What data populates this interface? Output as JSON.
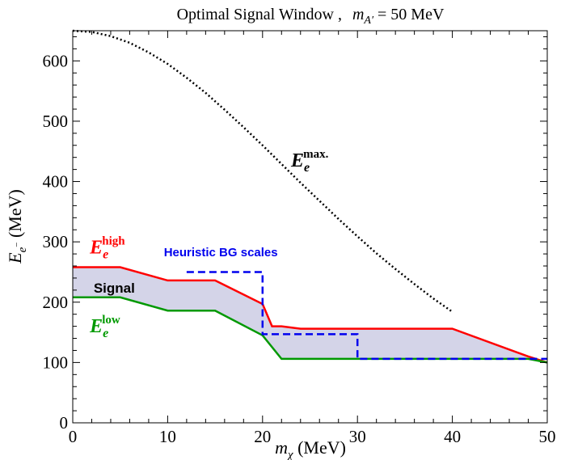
{
  "chart_data": {
    "type": "line",
    "title": "Optimal Signal Window ,",
    "title_math": {
      "symbol": "m",
      "subscript": "A′",
      "value_text": " = 50 MeV"
    },
    "xlabel": {
      "symbol": "m",
      "subscript": "χ",
      "unit": " (MeV)"
    },
    "ylabel": {
      "symbol": "E",
      "subscript": "e",
      "subsubscript": "−",
      "unit": " (MeV)"
    },
    "xlim": [
      0,
      50
    ],
    "ylim": [
      0,
      650
    ],
    "x_ticks": [
      0,
      10,
      20,
      30,
      40,
      50
    ],
    "y_ticks": [
      0,
      100,
      200,
      300,
      400,
      500,
      600
    ],
    "grid": false,
    "series": [
      {
        "key": "emax",
        "color": "#000000",
        "style": "dotted",
        "points": [
          [
            0,
            650
          ],
          [
            2,
            648
          ],
          [
            4,
            641
          ],
          [
            6,
            630
          ],
          [
            8,
            614
          ],
          [
            10,
            595
          ],
          [
            12,
            572
          ],
          [
            14,
            547
          ],
          [
            16,
            519
          ],
          [
            18,
            490
          ],
          [
            20,
            460
          ],
          [
            22,
            429
          ],
          [
            24,
            398
          ],
          [
            26,
            368
          ],
          [
            28,
            338
          ],
          [
            30,
            309
          ],
          [
            32,
            281
          ],
          [
            34,
            255
          ],
          [
            36,
            230
          ],
          [
            38,
            206
          ],
          [
            40,
            184
          ]
        ]
      },
      {
        "key": "ehigh",
        "color": "#ff0000",
        "style": "solid",
        "points": [
          [
            0,
            258
          ],
          [
            5,
            258
          ],
          [
            10,
            236
          ],
          [
            15,
            236
          ],
          [
            20,
            197
          ],
          [
            21,
            160
          ],
          [
            22,
            160
          ],
          [
            24,
            156
          ],
          [
            40,
            156
          ],
          [
            48,
            110
          ],
          [
            50,
            100
          ]
        ]
      },
      {
        "key": "elow",
        "color": "#009900",
        "style": "solid",
        "points": [
          [
            0,
            208
          ],
          [
            5,
            208
          ],
          [
            10,
            186
          ],
          [
            15,
            186
          ],
          [
            20,
            145
          ],
          [
            22,
            106
          ],
          [
            48,
            106
          ],
          [
            50,
            100
          ]
        ]
      },
      {
        "key": "heuristic",
        "color": "#0000ee",
        "style": "dashed",
        "points": [
          [
            12,
            250
          ],
          [
            20,
            250
          ],
          [
            20,
            147
          ],
          [
            30,
            147
          ],
          [
            30,
            106
          ],
          [
            50,
            106
          ]
        ]
      }
    ],
    "shaded_region": {
      "between": [
        "elow",
        "ehigh"
      ],
      "color": "#d4d4e8"
    },
    "annotations": {
      "emax_label": {
        "base": "E",
        "sub": "e",
        "sup": "max.",
        "at": [
          23,
          425
        ],
        "color": "#000000"
      },
      "ehigh_label": {
        "base": "E",
        "sub": "e",
        "sup": "high",
        "at": [
          1.8,
          281
        ],
        "color": "#ff0000"
      },
      "elow_label": {
        "base": "E",
        "sub": "e",
        "sup": "low",
        "at": [
          1.8,
          150
        ],
        "color": "#009900"
      },
      "signal_label": {
        "text": "Signal",
        "at": [
          2.2,
          216
        ],
        "color": "#000000"
      },
      "heuristic_label": {
        "text": "Heuristic BG scales",
        "at": [
          9.6,
          276
        ],
        "color": "#0000ee"
      }
    }
  }
}
